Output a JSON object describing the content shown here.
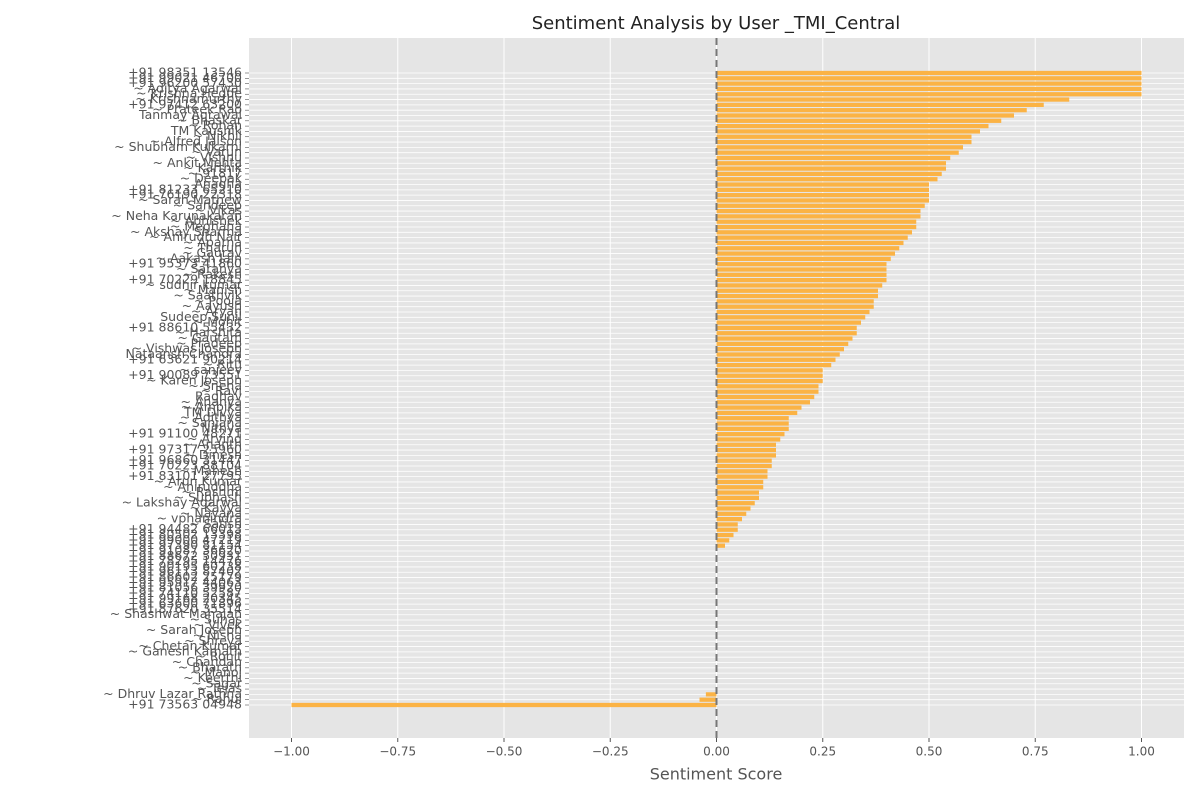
{
  "chart_data": {
    "type": "barh",
    "title": "Sentiment Analysis by User _TMI_Central",
    "xlabel": "Sentiment Score",
    "color": "#fbb345",
    "background": "#e5e5e5",
    "grid": true,
    "vline": 0,
    "xlim": [
      -1.1,
      1.1
    ],
    "xticks": [
      {
        "value": -1,
        "label": "−1.00"
      },
      {
        "value": -0.75,
        "label": "−0.75"
      },
      {
        "value": -0.5,
        "label": "−0.50"
      },
      {
        "value": -0.25,
        "label": "−0.25"
      },
      {
        "value": 0,
        "label": "0.00"
      },
      0.25,
      {
        "value": 0.5,
        "label": "0.50"
      },
      0.75,
      {
        "value": 1,
        "label": "1.00"
      }
    ],
    "categories": [
      "+91 98351 13546",
      "+91 99021 46700",
      "+91 96200 57430",
      "~ Aditya Agarwal",
      "~ Krishna Hegde",
      "~ Krishnamurthy",
      "+91 97412 63200",
      "~ Prateek Rao",
      "Tanmay Agrawal",
      "~ Bhaskar",
      "~ Rohan",
      "TM Kaushik",
      "~ Nikhil",
      "~ Alfred Jaison",
      "~ Shubham Kulkarni",
      "~ Varun",
      "~ Vishnu",
      "~ Ankit Mehta",
      "~ Karthik",
      "~ 91817",
      "~ Deepak",
      "Anagha",
      "+91 81233 65210",
      "+91 76190 22318",
      "~ Sarah Mathew",
      "~ Sandeep",
      "~ Vikas",
      "~ Neha Karunakaran",
      "~ Abhishek",
      "~ Meghana",
      "~ Akshay Sharma",
      "~ Anirudh Nair",
      "~ Aparna",
      "~ Tharun",
      "~ Gaurav",
      "~ Aakash Jain",
      "+91 95373 41860",
      "~ Saranya",
      "~ Rakesh",
      "+91 70229 18845",
      "~ sudhir kumar",
      "~ Manish",
      "~ Saathvik",
      "~ Pooja",
      "~ Aayush",
      "~ Aryan",
      "Sudeep Sunil",
      "~ Mohit",
      "+91 88610 55432",
      "~ Harshita",
      "~ Gautam",
      "~ Pradeep",
      "~ Vishwas Joseph",
      "Nataansh Chandra",
      "+91 63621 90214",
      "~ Ritu",
      "~ sanjeev",
      "+91 90089 73551",
      "~ Karen Joseph",
      "~ Sneha",
      "~ Ravi",
      "Raghav",
      "~ Ananya",
      "~ Ambika",
      "TM Divya",
      "~ Adithya",
      "~ Sanjana",
      "Nithya",
      "+91 91100 48271",
      "~ Arvind",
      "~ Ananth",
      "+91 97317 25960",
      "~ Dinesh",
      "+91 96860 31447",
      "+91 70223 88104",
      "~ Mahesh",
      "+91 83101 27795",
      "~ Arun Kumar",
      "~ Aniruddha",
      "~ Rashmi",
      "~ Subhash",
      "~ Lakshay Agarwal",
      "~ Kavya",
      "~ Nayana",
      "~ vphanindra",
      "~ Satish",
      "+91 94482 66013",
      "+91 80502 13398",
      "+91 99000 47219",
      "+91 97390 81154",
      "+91 91087 36620",
      "+91 88672 50931",
      "+91 78295 14476",
      "+91 90195 60238",
      "+91 96113 87402",
      "+91 86602 25179",
      "+91 95917 44063",
      "+91 81056 39920",
      "+91 74110 52587",
      "+91 99168 20345",
      "+91 63600 71896",
      "+91 87620 35514",
      "~ Shashwat Mahajan",
      "~ Suhas",
      "~ Vivek",
      "~ Sarah Joseph",
      "~ Nisha",
      "~ Shreya",
      "~ Chetan Kumar",
      "~ Ganesh Kamath",
      "~ Rohit",
      "~ Chandan",
      "~ Bharath",
      "~ Manoj",
      "~ Keerthi",
      "~ Sagar",
      "~ Tejas",
      "~ Dhruv Lazar Rathna",
      "~ Rahul",
      "+91 73563 04948"
    ],
    "values": [
      1,
      1,
      1,
      1,
      1,
      0.83,
      0.77,
      0.73,
      0.7,
      0.67,
      0.64,
      0.62,
      0.6,
      0.6,
      0.58,
      0.57,
      0.55,
      0.54,
      0.54,
      0.53,
      0.52,
      0.5,
      0.5,
      0.5,
      0.5,
      0.49,
      0.48,
      0.48,
      0.47,
      0.47,
      0.46,
      0.45,
      0.44,
      0.43,
      0.42,
      0.41,
      0.4,
      0.4,
      0.4,
      0.4,
      0.39,
      0.38,
      0.38,
      0.37,
      0.37,
      0.36,
      0.35,
      0.34,
      0.33,
      0.33,
      0.32,
      0.31,
      0.3,
      0.29,
      0.28,
      0.27,
      0.25,
      0.25,
      0.25,
      0.24,
      0.24,
      0.23,
      0.22,
      0.2,
      0.19,
      0.17,
      0.17,
      0.17,
      0.16,
      0.15,
      0.14,
      0.14,
      0.14,
      0.13,
      0.13,
      0.12,
      0.12,
      0.11,
      0.11,
      0.1,
      0.1,
      0.09,
      0.08,
      0.07,
      0.06,
      0.05,
      0.05,
      0.04,
      0.03,
      0.02,
      0,
      0,
      0,
      0,
      0,
      0,
      0,
      0,
      0,
      0,
      0,
      0,
      0,
      0,
      0,
      0,
      0,
      0,
      0,
      0,
      0,
      0,
      0,
      0,
      0,
      0,
      0,
      -0.025,
      -0.04,
      -1.0
    ]
  }
}
